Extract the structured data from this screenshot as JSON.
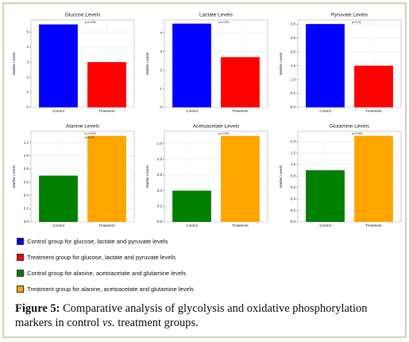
{
  "chart_data": [
    {
      "type": "bar",
      "title": "Glucose Levels",
      "y_label": "Marker Levels",
      "categories": [
        "Control",
        "Treatment"
      ],
      "values": [
        5.5,
        3.0
      ],
      "colors": [
        "#0000ff",
        "#ff0000"
      ],
      "ylim": [
        0,
        5.8
      ],
      "yticks": [
        0,
        1,
        2,
        3,
        4,
        5
      ],
      "grid": true,
      "annotations": [
        "p<0.001"
      ]
    },
    {
      "type": "bar",
      "title": "Lactate Levels",
      "y_label": "Marker Levels",
      "categories": [
        "Control",
        "Treatment"
      ],
      "values": [
        4.5,
        2.7
      ],
      "colors": [
        "#0000ff",
        "#ff0000"
      ],
      "ylim": [
        0,
        4.7
      ],
      "yticks": [
        0,
        1,
        2,
        3,
        4
      ],
      "grid": true,
      "annotations": [
        "p<0.001"
      ]
    },
    {
      "type": "bar",
      "title": "Pyruvate Levels",
      "y_label": "Marker Levels",
      "categories": [
        "Control",
        "Treatment"
      ],
      "values": [
        3.0,
        1.5
      ],
      "colors": [
        "#0000ff",
        "#ff0000"
      ],
      "ylim": [
        0,
        3.15
      ],
      "yticks": [
        {
          "value": 0,
          "label": "0.0"
        },
        0.5,
        {
          "value": 1,
          "label": "1.0"
        },
        1.5,
        {
          "value": 2,
          "label": "2.0"
        },
        2.5,
        {
          "value": 3,
          "label": "3.0"
        }
      ],
      "grid": true,
      "annotations": [
        "p<0.01"
      ]
    },
    {
      "type": "bar",
      "title": "Alanine Levels",
      "y_label": "Marker Levels",
      "categories": [
        "Control",
        "Treatment"
      ],
      "values": [
        0.7,
        1.3
      ],
      "colors": [
        "#008000",
        "#ffa500"
      ],
      "ylim": [
        0,
        1.37
      ],
      "yticks": [
        {
          "value": 0,
          "label": "0.0"
        },
        0.2,
        0.4,
        0.6,
        0.8,
        {
          "value": 1,
          "label": "1.0"
        },
        1.2
      ],
      "grid": true,
      "annotations": [
        "p<0.001",
        "p<0.01"
      ]
    },
    {
      "type": "bar",
      "title": "Acetoacetate Levels",
      "y_label": "Marker Levels",
      "categories": [
        "Control",
        "Treatment"
      ],
      "values": [
        0.4,
        1.1
      ],
      "colors": [
        "#008000",
        "#ffa500"
      ],
      "ylim": [
        0,
        1.16
      ],
      "yticks": [
        {
          "value": 0,
          "label": "0.0"
        },
        0.2,
        0.4,
        0.6,
        0.8,
        {
          "value": 1,
          "label": "1.0"
        }
      ],
      "grid": true,
      "annotations": [
        "p<0.001"
      ]
    },
    {
      "type": "bar",
      "title": "Glutamine Levels",
      "y_label": "Marker Levels",
      "categories": [
        "Control",
        "Treatment"
      ],
      "values": [
        0.9,
        1.5
      ],
      "colors": [
        "#008000",
        "#ffa500"
      ],
      "ylim": [
        0,
        1.58
      ],
      "yticks": [
        {
          "value": 0,
          "label": "0.0"
        },
        0.2,
        0.4,
        0.6,
        0.8,
        {
          "value": 1,
          "label": "1.0"
        },
        1.2,
        1.4
      ],
      "grid": true,
      "annotations": [
        "p<0.001"
      ]
    }
  ],
  "legend": [
    {
      "label": ": Control group for glucose, lactate and pyruvate levels",
      "color": "#0000ff"
    },
    {
      "label": ": Treatment group for glucose, lactate and pyruvate levels",
      "color": "#ff0000"
    },
    {
      "label": ": Control group for alanine, acetoacetate and glutamine levels",
      "color": "#008000"
    },
    {
      "label": ": Treatment group for alanine, acetoacetate and glutamine levels",
      "color": "#ffa500"
    }
  ],
  "caption": {
    "label": "Figure 5:",
    "text_before": "Comparative analysis of glycolysis and oxidative phosphorylation markers in control",
    "italic": "vs.",
    "text_after": "treatment groups."
  }
}
